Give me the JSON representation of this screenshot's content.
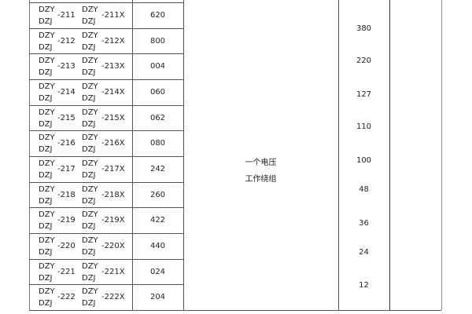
{
  "rows": [
    {
      "a": "-211",
      "b": "-211X",
      "code": "620"
    },
    {
      "a": "-212",
      "b": "-212X",
      "code": "800"
    },
    {
      "a": "-213",
      "b": "-213X",
      "code": "004"
    },
    {
      "a": "-214",
      "b": "-214X",
      "code": "060"
    },
    {
      "a": "-215",
      "b": "-215X",
      "code": "062"
    },
    {
      "a": "-216",
      "b": "-216X",
      "code": "080"
    },
    {
      "a": "-217",
      "b": "-217X",
      "code": "242"
    },
    {
      "a": "-218",
      "b": "-218X",
      "code": "260"
    },
    {
      "a": "-219",
      "b": "-219X",
      "code": "422"
    },
    {
      "a": "-220",
      "b": "-220X",
      "code": "440"
    },
    {
      "a": "-221",
      "b": "-221X",
      "code": "024"
    },
    {
      "a": "-222",
      "b": "-222X",
      "code": "204"
    }
  ],
  "prefix_top": "DZY",
  "prefix_bottom": "DZJ",
  "winding": {
    "line1": "一个电压",
    "line2": "工作绕组"
  },
  "voltages": [
    "380",
    "220",
    "127",
    "110",
    "100",
    "48",
    "36",
    "24",
    "12"
  ]
}
